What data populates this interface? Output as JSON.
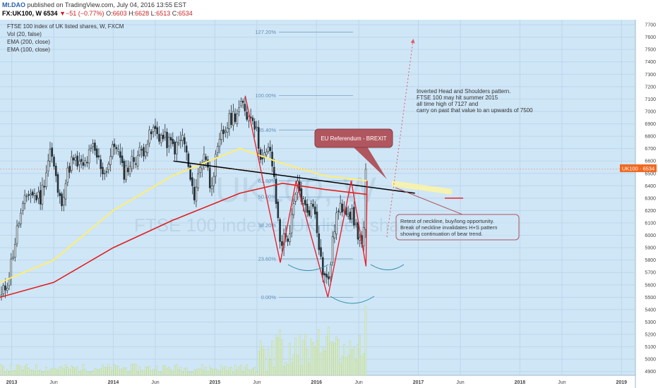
{
  "header": {
    "author": "Mt.DAO",
    "published": "published on TradingView.com, July 04, 2016 13:55 EST",
    "symbol": "FX:UK100, W",
    "last": "6534",
    "change": "−51 (−0.77%)",
    "o_label": "O:",
    "o": "6603",
    "h_label": "H:",
    "h": "6628",
    "l_label": "L:",
    "l": "6513",
    "c_label": "C:",
    "c": "6534"
  },
  "legend": [
    "FTSE 100 index of UK listed shares, W, FXCM",
    "Vol (20, false)",
    "EMA (200, close)",
    "EMA (100, close)"
  ],
  "watermark": {
    "symbol": "UK100, W",
    "name": "FTSE 100 index of UK listed shares"
  },
  "price_tag": "UK100 · 6534",
  "fib_levels": [
    {
      "label": "127.20%",
      "value": 7640
    },
    {
      "label": "100.00%",
      "value": 7127
    },
    {
      "label": "85.40%",
      "value": 6850
    },
    {
      "label": "61.80%",
      "value": 6440
    },
    {
      "label": "50.00%",
      "value": 6310
    },
    {
      "label": "38.20%",
      "value": 6080
    },
    {
      "label": "23.60%",
      "value": 5810
    },
    {
      "label": "0.00%",
      "value": 5500
    }
  ],
  "annotations": {
    "thesis": [
      "Inverted Head and Shoulders pattern.",
      "FTSE 100 may hit summer 2015",
      "all time high of 7127 and",
      "carry on past that value to an upwards of 7500"
    ],
    "event": "EU Referendum - BREXIT",
    "retest": [
      "Retest of neckline, buy/long opportunity.",
      "Break of neckline invalidates H+S pattern",
      "showing continuation of bear trend."
    ]
  },
  "colors": {
    "background": "#cfe6f7",
    "grid": "#bcd6ea",
    "candle_up": "#f2f2f2",
    "candle_down": "#263238",
    "volume": "#dcedc8",
    "ema200": "#ffee70",
    "ema100": "#e0201e",
    "pattern": "#e8232e",
    "neckline": "#000000",
    "fib": "#7aa3c2",
    "last_price": "#f06a23"
  },
  "chart_data": {
    "type": "candlestick",
    "symbol": "FX:UK100",
    "interval": "W",
    "x_ticks": [
      "2013",
      "Jun",
      "2014",
      "Jun",
      "2015",
      "Jun",
      "2016",
      "Jun",
      "2017",
      "Jun",
      "2018",
      "Jun",
      "2019"
    ],
    "y_ticks": [
      4900,
      5000,
      5100,
      5200,
      5300,
      5400,
      5500,
      5600,
      5700,
      5800,
      5900,
      6000,
      6100,
      6200,
      6300,
      6400,
      6500,
      6600,
      6700,
      6800,
      6900,
      7000,
      7100,
      7200,
      7300,
      7400,
      7500,
      7600,
      7700
    ],
    "y_range": [
      4870,
      7740
    ],
    "x_range": [
      "2012-11-20",
      "2019-02-20"
    ],
    "last_price": 6534,
    "close_series": [
      [
        "2012-11-25",
        5500
      ],
      [
        "2012-12-20",
        5650
      ],
      [
        "2013-01-25",
        6100
      ],
      [
        "2013-03-01",
        6350
      ],
      [
        "2013-04-15",
        6300
      ],
      [
        "2013-05-20",
        6700
      ],
      [
        "2013-06-25",
        6250
      ],
      [
        "2013-08-01",
        6600
      ],
      [
        "2013-09-15",
        6550
      ],
      [
        "2013-10-20",
        6700
      ],
      [
        "2013-12-01",
        6500
      ],
      [
        "2014-01-10",
        6760
      ],
      [
        "2014-02-05",
        6500
      ],
      [
        "2014-03-10",
        6600
      ],
      [
        "2014-04-20",
        6700
      ],
      [
        "2014-05-25",
        6850
      ],
      [
        "2014-07-01",
        6780
      ],
      [
        "2014-08-15",
        6700
      ],
      [
        "2014-09-10",
        6800
      ],
      [
        "2014-10-15",
        6300
      ],
      [
        "2014-11-25",
        6700
      ],
      [
        "2014-12-15",
        6400
      ],
      [
        "2015-01-25",
        6800
      ],
      [
        "2015-03-01",
        6950
      ],
      [
        "2015-04-15",
        7050
      ],
      [
        "2015-05-01",
        6950
      ],
      [
        "2015-05-15",
        7000
      ],
      [
        "2015-06-20",
        6600
      ],
      [
        "2015-07-20",
        6700
      ],
      [
        "2015-08-24",
        5950
      ],
      [
        "2015-09-25",
        6000
      ],
      [
        "2015-10-25",
        6400
      ],
      [
        "2015-11-25",
        6200
      ],
      [
        "2015-12-25",
        6240
      ],
      [
        "2016-01-20",
        5750
      ],
      [
        "2016-02-11",
        5600
      ],
      [
        "2016-03-10",
        6150
      ],
      [
        "2016-04-10",
        6250
      ],
      [
        "2016-05-10",
        6150
      ],
      [
        "2016-06-15",
        5900
      ],
      [
        "2016-06-24",
        6150
      ],
      [
        "2016-07-01",
        6534
      ]
    ],
    "series": [
      {
        "name": "EMA (200, close)",
        "points": [
          [
            "2012-11-20",
            5620
          ],
          [
            "2013-06-01",
            5800
          ],
          [
            "2014-01-01",
            6200
          ],
          [
            "2014-08-01",
            6480
          ],
          [
            "2015-04-01",
            6700
          ],
          [
            "2015-09-01",
            6580
          ],
          [
            "2016-02-01",
            6480
          ],
          [
            "2016-07-01",
            6440
          ]
        ]
      },
      {
        "name": "EMA (100, close)",
        "points": [
          [
            "2012-11-20",
            5500
          ],
          [
            "2013-06-01",
            5620
          ],
          [
            "2014-01-01",
            5900
          ],
          [
            "2014-08-01",
            6120
          ],
          [
            "2015-04-01",
            6340
          ],
          [
            "2015-09-01",
            6420
          ],
          [
            "2016-02-01",
            6370
          ],
          [
            "2016-07-01",
            6330
          ]
        ]
      }
    ],
    "pattern_lines": {
      "neckline": [
        [
          "2014-08-05",
          6600
        ],
        [
          "2016-12-20",
          6340
        ]
      ],
      "inverted_head_and_shoulders": [
        [
          "2015-04-20",
          7127
        ],
        [
          "2015-08-24",
          5780
        ],
        [
          "2015-10-20",
          6440
        ],
        [
          "2016-02-11",
          5500
        ],
        [
          "2016-05-05",
          6440
        ],
        [
          "2016-06-27",
          5750
        ],
        [
          "2016-07-01",
          6440
        ]
      ],
      "projection_target": 7640
    }
  }
}
